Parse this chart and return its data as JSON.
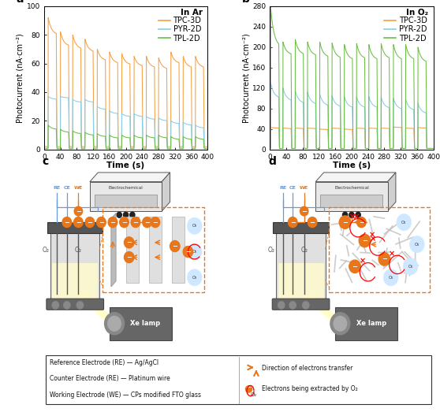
{
  "panel_a": {
    "title": "In Ar",
    "ylabel": "Photocurrent (nA·cm⁻²)",
    "xlabel": "Time (s)",
    "ylim": [
      0,
      100
    ],
    "yticks": [
      0,
      20,
      40,
      60,
      80,
      100
    ],
    "xticks": [
      0,
      40,
      80,
      120,
      160,
      200,
      240,
      280,
      320,
      360,
      400
    ],
    "label": "a",
    "n_cycles": 13,
    "period": 30,
    "on_duration": 20,
    "start_time": 10,
    "peaks_TPC": [
      92,
      82,
      80,
      77,
      70,
      68,
      67,
      65,
      65,
      64,
      68,
      65,
      65
    ],
    "peaks_PYR": [
      37,
      37,
      35,
      35,
      30,
      27,
      25,
      25,
      23,
      22,
      20,
      19,
      17
    ],
    "peaks_TPL": [
      17,
      14,
      13,
      12,
      11,
      10,
      10,
      10,
      10,
      10,
      9,
      9,
      9
    ],
    "steady_TPC": [
      80,
      72,
      70,
      68,
      62,
      60,
      59,
      58,
      57,
      56,
      60,
      57,
      57
    ],
    "steady_PYR": [
      35,
      36,
      33,
      33,
      28,
      25,
      23,
      23,
      21,
      20,
      18,
      17,
      15
    ],
    "steady_TPL": [
      14,
      12,
      11,
      10,
      9,
      8,
      8,
      8,
      8,
      8,
      7,
      7,
      7
    ],
    "decay_off_TPC": 0.6,
    "decay_off_PYR": 0.5,
    "decay_off_TPL": 0.7,
    "baseline_TPC": 2,
    "baseline_PYR": 1,
    "baseline_TPL": 0.5
  },
  "panel_b": {
    "title": "In O₂",
    "ylabel": "Photocurrent (nA·cm⁻²)",
    "xlabel": "Time (s)",
    "ylim": [
      0,
      280
    ],
    "yticks": [
      0,
      40,
      80,
      120,
      160,
      200,
      240,
      280
    ],
    "xticks": [
      0,
      40,
      80,
      120,
      160,
      200,
      240,
      280,
      320,
      360,
      400
    ],
    "label": "b",
    "n_cycles": 13,
    "period": 30,
    "on_duration": 20,
    "start_time": 2,
    "peaks_TPC": [
      43,
      42,
      42,
      42,
      40,
      42,
      40,
      42,
      42,
      42,
      44,
      42,
      43
    ],
    "peaks_PYR": [
      130,
      120,
      115,
      112,
      108,
      105,
      103,
      103,
      103,
      102,
      100,
      98,
      90
    ],
    "peaks_TPL": [
      278,
      210,
      215,
      210,
      210,
      208,
      205,
      207,
      205,
      207,
      205,
      205,
      200
    ],
    "steady_TPC": [
      42,
      41,
      41,
      41,
      39,
      41,
      39,
      41,
      41,
      41,
      43,
      41,
      42
    ],
    "steady_PYR": [
      100,
      95,
      90,
      88,
      85,
      83,
      81,
      81,
      81,
      80,
      78,
      76,
      70
    ],
    "steady_TPL": [
      200,
      185,
      185,
      183,
      180,
      178,
      175,
      177,
      175,
      177,
      175,
      175,
      170
    ],
    "decay_off_TPC": 0.8,
    "decay_off_PYR": 0.4,
    "decay_off_TPL": 0.5,
    "baseline_TPC": 2,
    "baseline_PYR": 2,
    "baseline_TPL": 2
  },
  "colors_TPC": "#F5A045",
  "colors_PYR": "#87CEEB",
  "colors_TPL": "#6BBF45",
  "bg_color": "#ffffff",
  "axis_fontsize": 7.5,
  "tick_fontsize": 6.5,
  "legend_fontsize": 7,
  "panel_label_fontsize": 10
}
